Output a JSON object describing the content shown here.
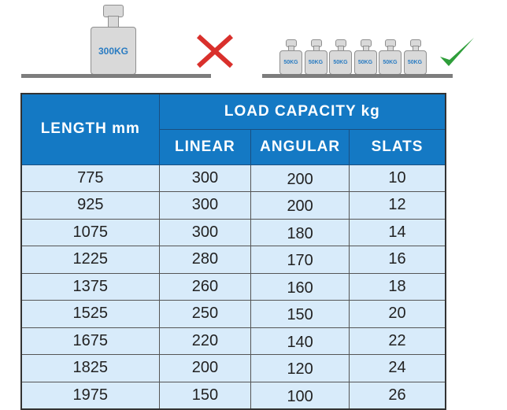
{
  "illustration": {
    "single_weight_label": "300KG",
    "small_weight_labels": [
      "50KG",
      "50KG",
      "50KG",
      "50KG",
      "50KG",
      "50KG"
    ],
    "wrong_icon": "cross-icon",
    "right_icon": "check-icon",
    "colors": {
      "cross": "#d9302c",
      "check": "#2e9e3a",
      "weight_text": "#2a7cc2"
    }
  },
  "table": {
    "header_color": "#1479c4",
    "row_color": "#d8ebfa",
    "length_header": "LENGTH mm",
    "group_header": "LOAD CAPACITY kg",
    "sub_headers": [
      "LINEAR",
      "ANGULAR",
      "SLATS"
    ],
    "rows": [
      [
        "775",
        "300",
        "200",
        "10"
      ],
      [
        "925",
        "300",
        "200",
        "12"
      ],
      [
        "1075",
        "300",
        "180",
        "14"
      ],
      [
        "1225",
        "280",
        "170",
        "16"
      ],
      [
        "1375",
        "260",
        "160",
        "18"
      ],
      [
        "1525",
        "250",
        "150",
        "20"
      ],
      [
        "1675",
        "220",
        "140",
        "22"
      ],
      [
        "1825",
        "200",
        "120",
        "24"
      ],
      [
        "1975",
        "150",
        "100",
        "26"
      ]
    ]
  }
}
